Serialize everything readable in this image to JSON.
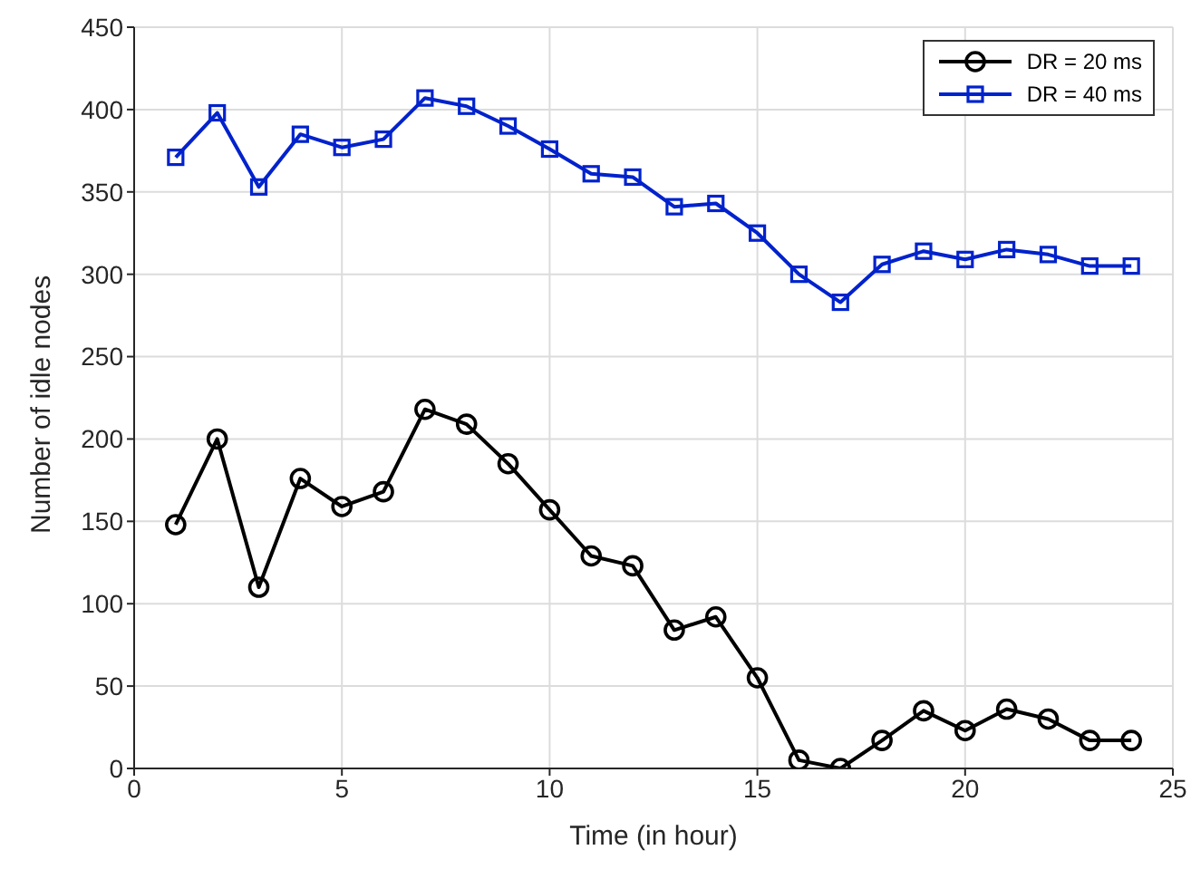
{
  "chart_data": {
    "type": "line",
    "xlabel": "Time (in hour)",
    "ylabel": "Number of idle nodes",
    "x": [
      1,
      2,
      3,
      4,
      5,
      6,
      7,
      8,
      9,
      10,
      11,
      12,
      13,
      14,
      15,
      16,
      17,
      18,
      19,
      20,
      21,
      22,
      23,
      24
    ],
    "series": [
      {
        "name": "DR = 20 ms",
        "color": "#000000",
        "marker": "circle",
        "values": [
          148,
          200,
          110,
          176,
          159,
          168,
          218,
          209,
          185,
          157,
          129,
          123,
          84,
          92,
          55,
          5,
          0,
          17,
          35,
          23,
          36,
          30,
          17,
          17
        ]
      },
      {
        "name": "DR = 40 ms",
        "color": "#0022cc",
        "marker": "square",
        "values": [
          371,
          398,
          353,
          385,
          377,
          382,
          407,
          402,
          390,
          376,
          361,
          359,
          341,
          343,
          325,
          300,
          283,
          306,
          314,
          309,
          315,
          312,
          305,
          305
        ]
      }
    ],
    "xlim": [
      0,
      25
    ],
    "xticks": [
      0,
      5,
      10,
      15,
      20,
      25
    ],
    "ylim": [
      0,
      450
    ],
    "yticks": [
      0,
      50,
      100,
      150,
      200,
      250,
      300,
      350,
      400,
      450
    ],
    "grid": true,
    "legend": "top right",
    "line_style": "solid"
  }
}
